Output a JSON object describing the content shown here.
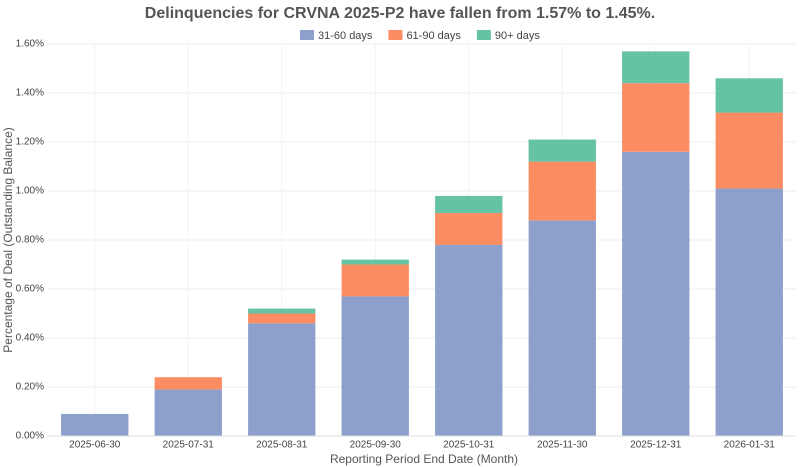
{
  "chart_data": {
    "type": "bar",
    "stacked": true,
    "title": "Delinquencies for CRVNA 2025-P2 have fallen from 1.57% to 1.45%.",
    "x_label": "Reporting Period End Date (Month)",
    "y_label": "Percentage of Deal (Outstanding Balance)",
    "categories": [
      "2025-06-30",
      "2025-07-31",
      "2025-08-31",
      "2025-09-30",
      "2025-10-31",
      "2025-11-30",
      "2025-12-31",
      "2026-01-31"
    ],
    "series": [
      {
        "name": "31-60 days",
        "color": "#8da0cb",
        "values": [
          0.09,
          0.19,
          0.46,
          0.57,
          0.78,
          0.88,
          1.16,
          1.01
        ]
      },
      {
        "name": "61-90 days",
        "color": "#fc8d62",
        "values": [
          0,
          0.05,
          0.04,
          0.13,
          0.13,
          0.24,
          0.28,
          0.31
        ]
      },
      {
        "name": "90+ days",
        "color": "#66c2a5",
        "values": [
          0,
          0,
          0.02,
          0.02,
          0.07,
          0.09,
          0.13,
          0.14
        ]
      }
    ],
    "ylim": [
      0,
      1.6
    ],
    "yticks": [
      {
        "value": 0,
        "label": "0.00%"
      },
      {
        "value": 0.2,
        "label": "0.20%"
      },
      {
        "value": 0.4,
        "label": "0.40%"
      },
      {
        "value": 0.6,
        "label": "0.60%"
      },
      {
        "value": 0.8,
        "label": "0.80%"
      },
      {
        "value": 1.0,
        "label": "1.00%"
      },
      {
        "value": 1.2,
        "label": "1.20%"
      },
      {
        "value": 1.4,
        "label": "1.40%"
      },
      {
        "value": 1.6,
        "label": "1.60%"
      }
    ],
    "grid": true
  }
}
